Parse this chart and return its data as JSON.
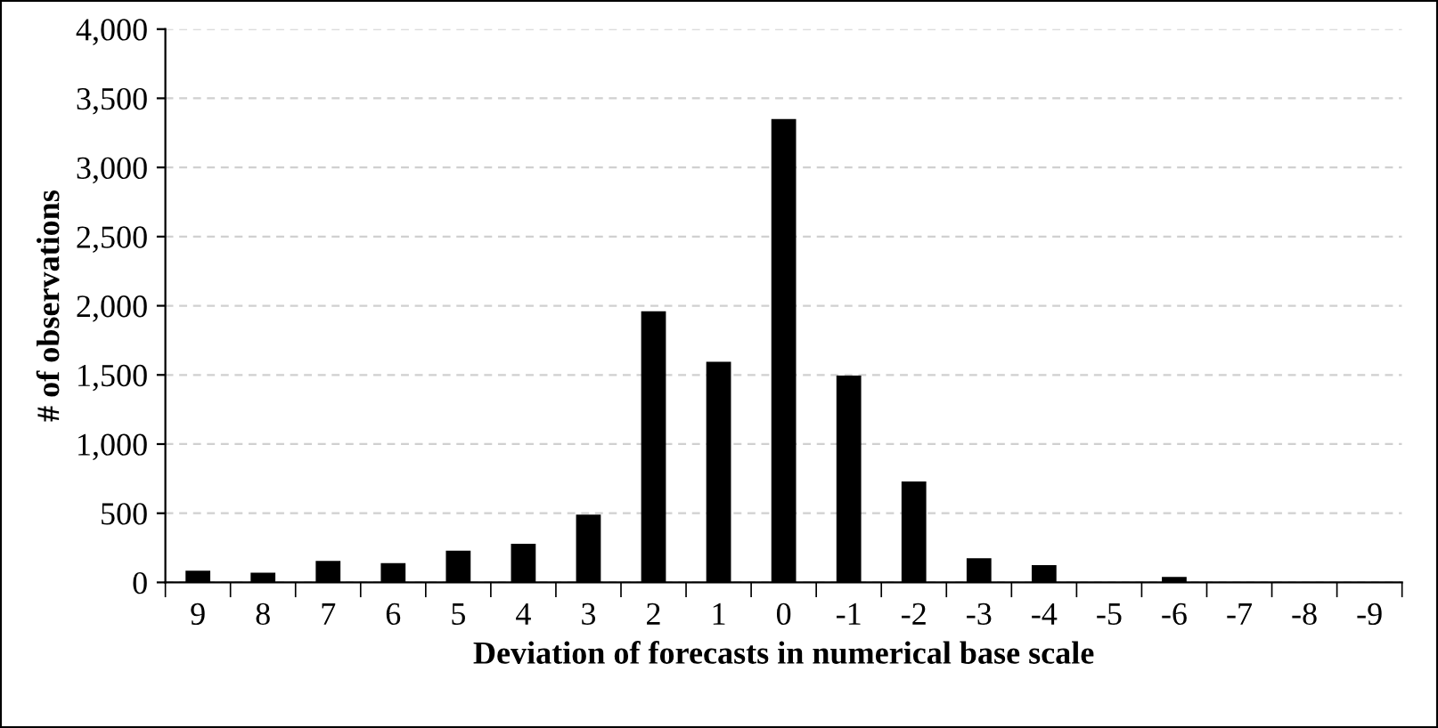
{
  "chart_data": {
    "type": "bar",
    "xlabel": "Deviation of forecasts in numerical base scale",
    "ylabel": "# of observations",
    "categories": [
      "9",
      "8",
      "7",
      "6",
      "5",
      "4",
      "3",
      "2",
      "1",
      "0",
      "-1",
      "-2",
      "-3",
      "-4",
      "-5",
      "-6",
      "-7",
      "-8",
      "-9"
    ],
    "values": [
      85,
      70,
      155,
      140,
      230,
      280,
      490,
      1960,
      1595,
      3350,
      1495,
      730,
      175,
      125,
      0,
      40,
      0,
      0,
      0
    ],
    "color": "#000000",
    "ylim": [
      0,
      4000
    ],
    "yticks": [
      0,
      {
        "value": 500,
        "label": "500"
      },
      {
        "value": 1000,
        "label": "1,000"
      },
      {
        "value": 1500,
        "label": "1,500"
      },
      {
        "value": 2000,
        "label": "2,000"
      },
      {
        "value": 2500,
        "label": "2,500"
      },
      {
        "value": 3000,
        "label": "3,000"
      },
      {
        "value": 3500,
        "label": "3,500"
      },
      {
        "value": 4000,
        "label": "4,000"
      }
    ],
    "grid": "y"
  }
}
